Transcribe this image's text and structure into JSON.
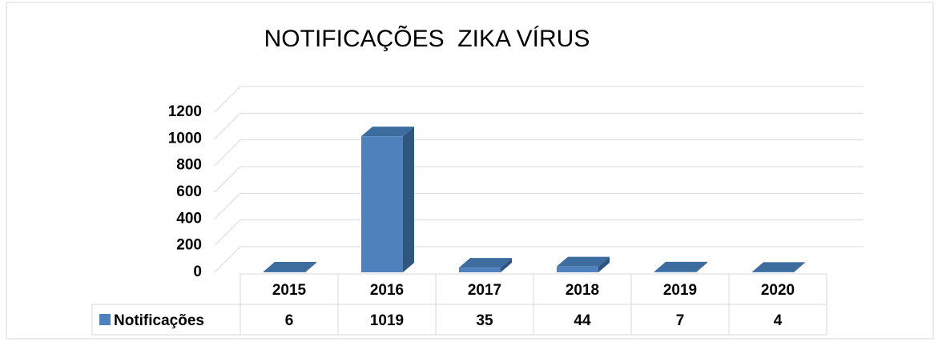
{
  "chart_data": {
    "type": "bar3d",
    "title": "NOTIFICAÇÕES  ZIKA VÍRUS",
    "categories": [
      "2015",
      "2016",
      "2017",
      "2018",
      "2019",
      "2020"
    ],
    "series": [
      {
        "name": "Notificações",
        "color": "#4f81bd",
        "values": [
          6,
          1019,
          35,
          44,
          7,
          4
        ]
      }
    ],
    "ylim": [
      0,
      1200
    ],
    "yticks": [
      0,
      200,
      400,
      600,
      800,
      1000,
      1200
    ],
    "grid": true,
    "data_table": true
  }
}
